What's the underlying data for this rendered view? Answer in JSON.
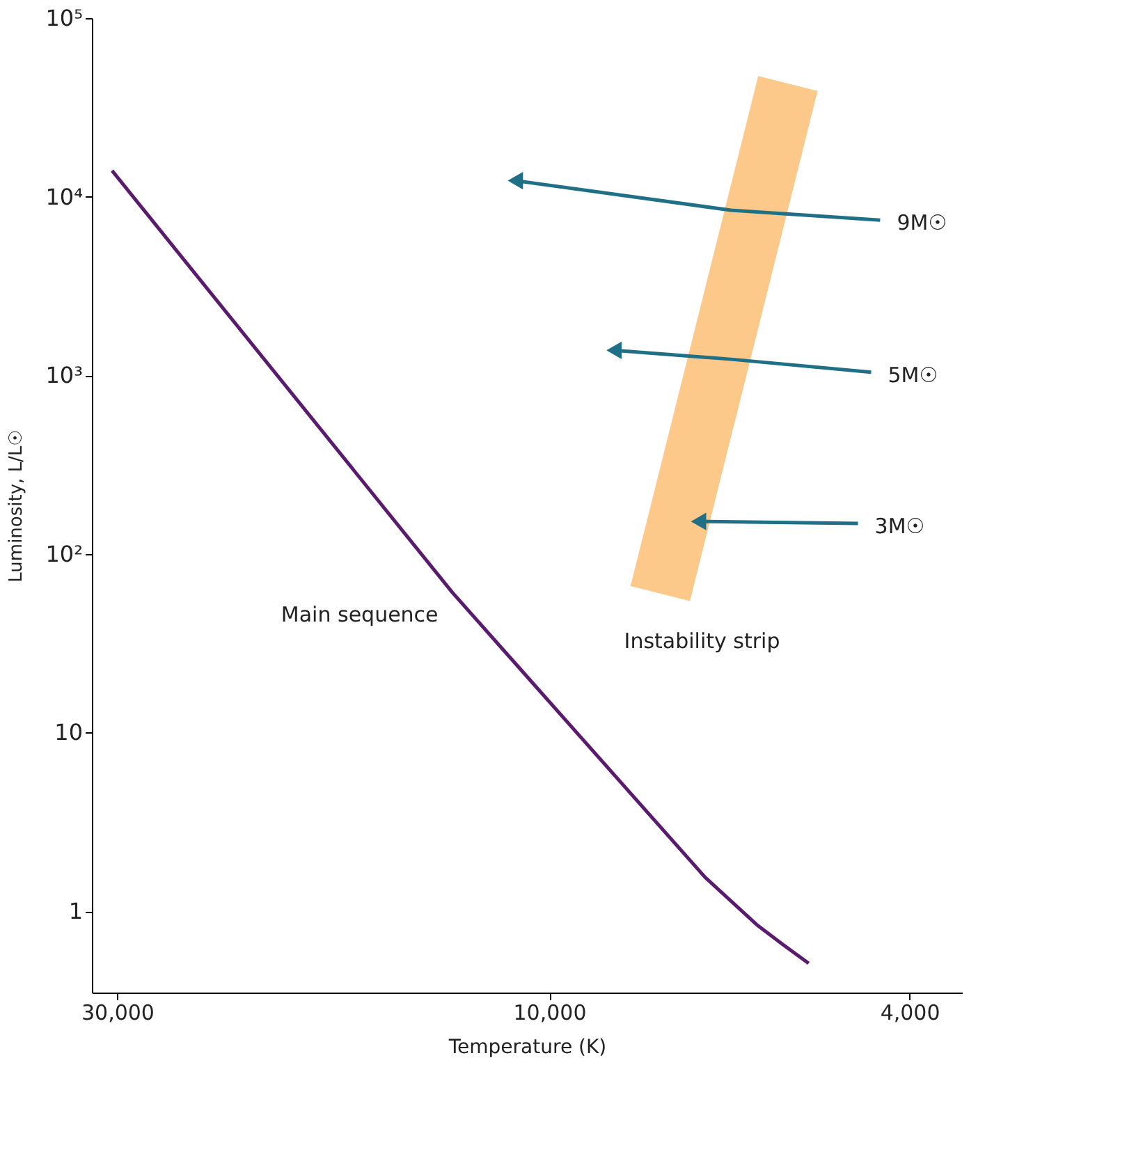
{
  "chart_data": {
    "type": "line",
    "xlabel": "Temperature (K)",
    "ylabel": "Luminosity, L/L☉",
    "xlim": [
      32000,
      3500
    ],
    "ylim": [
      0.35,
      100000
    ],
    "xticks": [
      {
        "value": 30000,
        "label": "30,000"
      },
      {
        "value": 10000,
        "label": "10,000"
      },
      {
        "value": 4000,
        "label": "4,000"
      }
    ],
    "yticks": [
      {
        "value": 1,
        "label": "1"
      },
      {
        "value": 10,
        "label": "10"
      },
      {
        "value": 100,
        "label": "10²"
      },
      {
        "value": 1000,
        "label": "10³"
      },
      {
        "value": 10000,
        "label": "10⁴"
      },
      {
        "value": 100000,
        "label": "10⁵"
      }
    ],
    "log": "xy",
    "grid": false,
    "series": [
      {
        "name": "Main sequence",
        "color": "#5a1a6e",
        "marker": "none",
        "x": [
          30400,
          12800,
          6730,
          5900,
          5520,
          5170
        ],
        "values": [
          14000,
          61,
          1.55,
          0.84,
          0.65,
          0.51
        ]
      },
      {
        "name": "Instability strip",
        "color": "#fdc98a",
        "marker": "none",
        "x": [
          7540,
          5450
        ],
        "values": [
          60,
          43000
        ]
      },
      {
        "name": "9M☉",
        "color": "#1f6f87",
        "x": [
          4310,
          6300,
          10900
        ],
        "values": [
          7400,
          8400,
          12300
        ]
      },
      {
        "name": "5M☉",
        "color": "#1f6f87",
        "x": [
          4410,
          6300,
          8480
        ],
        "values": [
          1040,
          1230,
          1380
        ]
      },
      {
        "name": "3M☉",
        "color": "#1f6f87",
        "x": [
          4560,
          6840
        ],
        "values": [
          148,
          152
        ]
      }
    ]
  }
}
